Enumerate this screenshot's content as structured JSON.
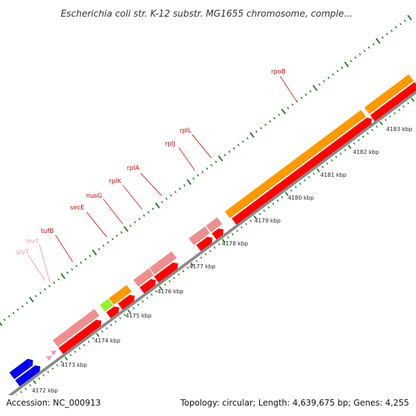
{
  "title": "Escherichia coli str. K-12 substr. MG1655 chromosome, comple...",
  "accession_text": "Accession: NC_000913",
  "summary_text": "Topology: circular; Length: 4,639,675 bp; Genes: 4,255",
  "colors": {
    "backbone": "#8a8a8a",
    "tick_major": "#1f7f1f",
    "tick_minor": "#2a8a2a",
    "label_red": "#cc0000",
    "label_pink": "#ee99bb",
    "cds_red": "#ff0000",
    "gene_pink": "#ee8f8f",
    "gene_orange": "#ff9900",
    "gene_green": "#99ee33",
    "gene_blue": "#0000ee",
    "trna_pink": "#ee99cc",
    "leader": "#dd2222"
  },
  "kbp_labels": [
    "4172 kbp",
    "4173 kbp",
    "4174 kbp",
    "4175 kbp",
    "4176 kbp",
    "4177 kbp",
    "4178 kbp",
    "4179 kbp",
    "4180 kbp",
    "4181 kbp",
    "4182 kbp",
    "4183 kbp"
  ],
  "gene_labels": [
    {
      "name": "rpoB",
      "color": "red"
    },
    {
      "name": "rplL",
      "color": "red"
    },
    {
      "name": "rplJ",
      "color": "red"
    },
    {
      "name": "rplA",
      "color": "red"
    },
    {
      "name": "rplK",
      "color": "red"
    },
    {
      "name": "nusG",
      "color": "red"
    },
    {
      "name": "secE",
      "color": "red"
    },
    {
      "name": "tufB",
      "color": "red"
    },
    {
      "name": "thrT",
      "color": "pink"
    },
    {
      "name": "glyT",
      "color": "pink"
    }
  ]
}
